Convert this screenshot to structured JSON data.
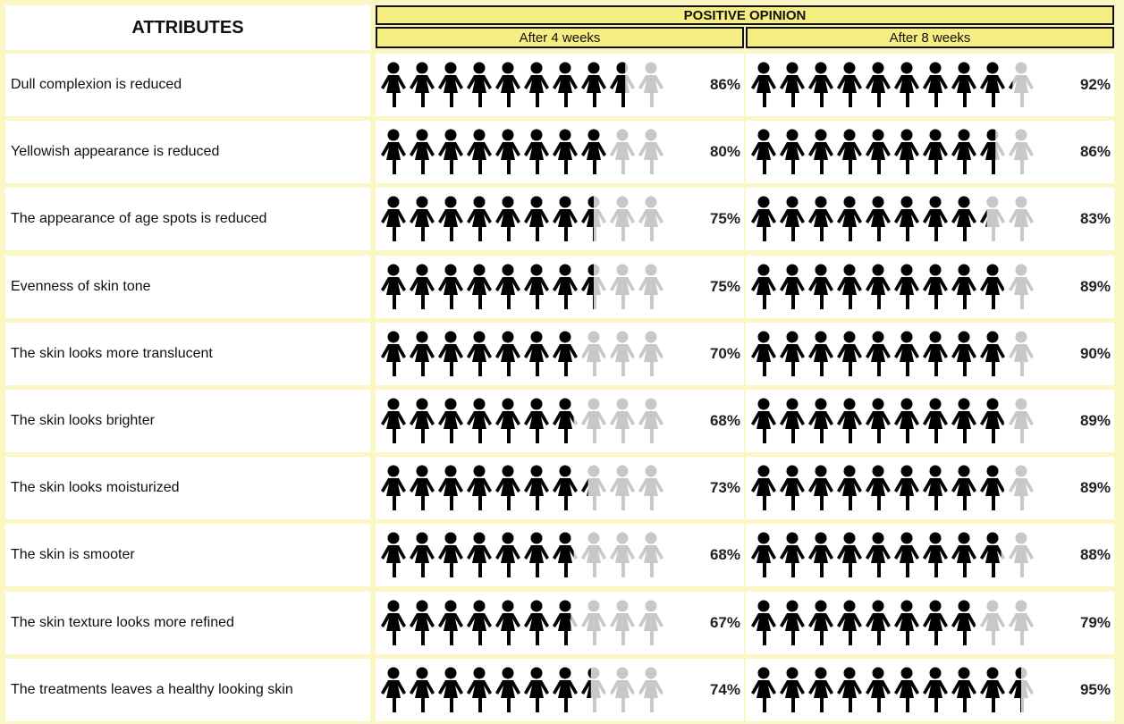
{
  "chart_data": {
    "type": "pictograph",
    "header_attributes": "ATTRIBUTES",
    "header_group": "POSITIVE OPINION",
    "periods": [
      "After 4 weeks",
      "After 8 weeks"
    ],
    "unit_percent_per_icon": 10,
    "colors": {
      "filled": "#000000",
      "empty": "#c8c8c8",
      "header_fill": "#f5ee82",
      "background": "#fbf7c4"
    },
    "rows": [
      {
        "attribute": "Dull complexion is reduced",
        "values": [
          86,
          92
        ],
        "labels": [
          "86%",
          "92%"
        ]
      },
      {
        "attribute": "Yellowish appearance is reduced",
        "values": [
          80,
          86
        ],
        "labels": [
          "80%",
          "86%"
        ]
      },
      {
        "attribute": "The appearance of age spots is reduced",
        "values": [
          75,
          83
        ],
        "labels": [
          "75%",
          "83%"
        ]
      },
      {
        "attribute": "Evenness of skin tone",
        "values": [
          75,
          89
        ],
        "labels": [
          "75%",
          "89%"
        ]
      },
      {
        "attribute": "The skin looks more translucent",
        "values": [
          70,
          90
        ],
        "labels": [
          "70%",
          "90%"
        ]
      },
      {
        "attribute": "The skin looks brighter",
        "values": [
          68,
          89
        ],
        "labels": [
          "68%",
          "89%"
        ]
      },
      {
        "attribute": "The skin looks moisturized",
        "values": [
          73,
          89
        ],
        "labels": [
          "73%",
          "89%"
        ]
      },
      {
        "attribute": "The skin is smooter",
        "values": [
          68,
          88
        ],
        "labels": [
          "68%",
          "88%"
        ]
      },
      {
        "attribute": "The skin texture looks more refined",
        "values": [
          67,
          79
        ],
        "labels": [
          "67%",
          "79%"
        ]
      },
      {
        "attribute": "The treatments leaves a healthy looking skin",
        "values": [
          74,
          95
        ],
        "labels": [
          "74%",
          "95%"
        ]
      }
    ]
  }
}
